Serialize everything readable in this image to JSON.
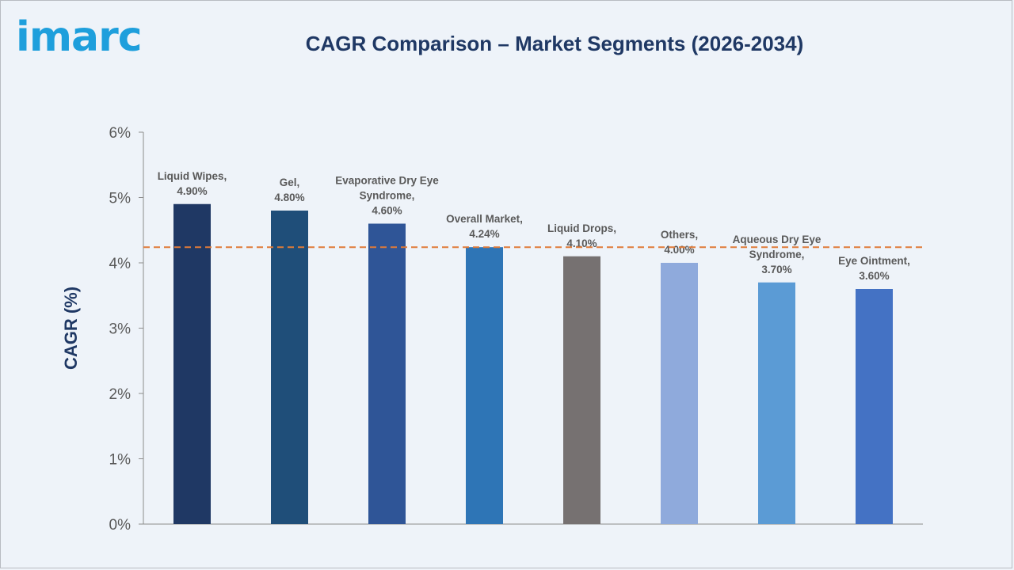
{
  "brand": {
    "name": "imarc",
    "color": "#1e9fdc"
  },
  "title": "CAGR Comparison – Market Segments (2026-2034)",
  "chart_data": {
    "type": "bar",
    "title": "CAGR Comparison – Market Segments (2026-2034)",
    "ylabel": "CAGR (%)",
    "xlabel": "",
    "ylim": [
      0,
      6
    ],
    "yticks": [
      "0%",
      "1%",
      "2%",
      "3%",
      "4%",
      "5%",
      "6%"
    ],
    "yticks_values": [
      0,
      1,
      2,
      3,
      4,
      5,
      6
    ],
    "grid": false,
    "legend": "none",
    "categories": [
      [
        "Liquid Wipes,",
        "4.90%"
      ],
      [
        "Gel,",
        "4.80%"
      ],
      [
        "Evaporative Dry Eye",
        "Syndrome,",
        "4.60%"
      ],
      [
        "Overall Market,",
        "4.24%"
      ],
      [
        "Liquid Drops,",
        "4.10%"
      ],
      [
        "Others,",
        "4.00%"
      ],
      [
        "Aqueous Dry Eye",
        "Syndrome,",
        "3.70%"
      ],
      [
        "Eye Ointment,",
        "3.60%"
      ]
    ],
    "values": [
      4.9,
      4.8,
      4.6,
      4.24,
      4.1,
      4.0,
      3.7,
      3.6
    ],
    "colors": [
      "#1f3864",
      "#1f4e79",
      "#2f5597",
      "#2e75b6",
      "#767171",
      "#8faadc",
      "#5b9bd5",
      "#4472c4"
    ],
    "reference_line": {
      "value": 4.24,
      "color": "#e07b39",
      "style": "dashed"
    }
  }
}
